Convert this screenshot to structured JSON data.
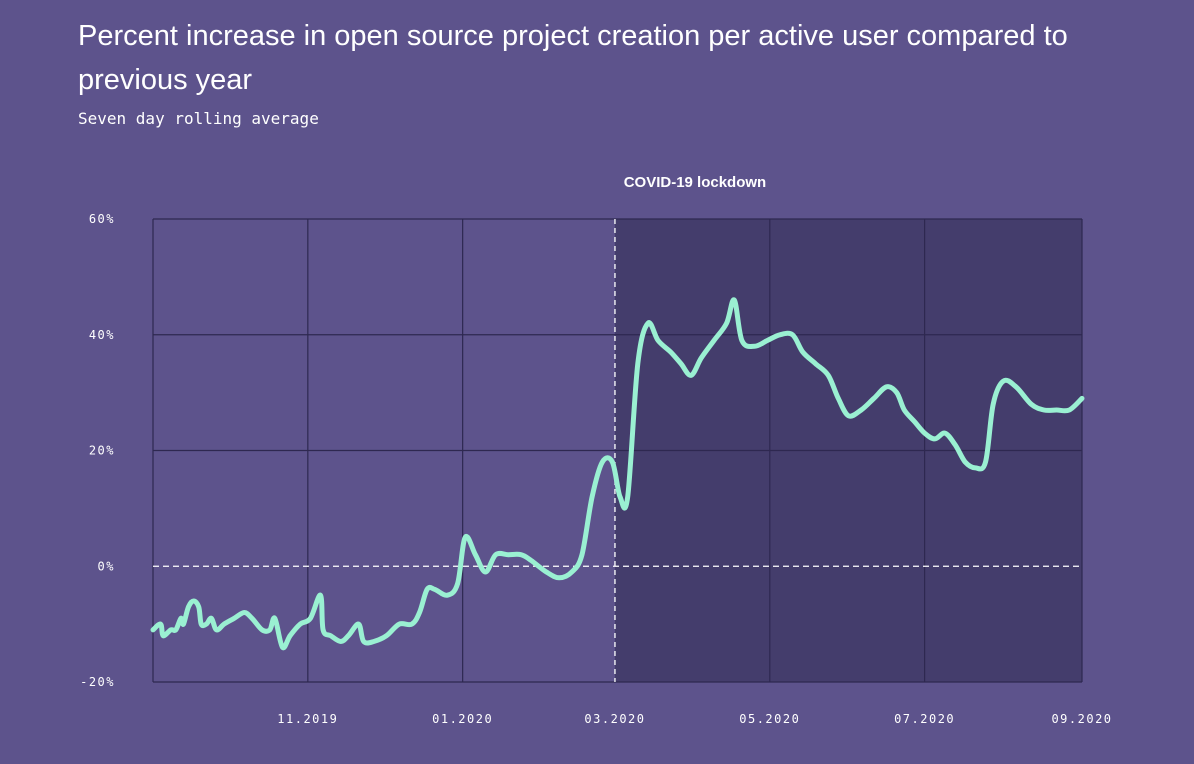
{
  "title": "Percent increase in open source project creation per active user compared to previous year",
  "subtitle": "Seven day rolling average",
  "colors": {
    "background": "#5d538c",
    "shaded_region": "#443d6c",
    "line": "#9af0d2",
    "grid": "#2e2850"
  },
  "chart_data": {
    "type": "line",
    "title": "Percent increase in open source project creation per active user compared to previous year",
    "subtitle": "Seven day rolling average",
    "xlabel": "",
    "ylabel": "",
    "x_range": [
      "2019-09-01",
      "2020-09-01"
    ],
    "ylim": [
      -20,
      60
    ],
    "y_ticks": [
      60,
      40,
      20,
      0,
      -20
    ],
    "y_tick_labels": [
      "60%",
      "40%",
      "20%",
      "0%",
      "-20%"
    ],
    "x_ticks": [
      "2019-11-01",
      "2020-01-01",
      "2020-03-01",
      "2020-05-01",
      "2020-07-01",
      "2020-09-01"
    ],
    "x_tick_labels": [
      "11.2019",
      "01.2020",
      "03.2020",
      "05.2020",
      "07.2020",
      "09.2020"
    ],
    "grid": true,
    "zero_line": "dashed",
    "annotation": {
      "label": "COVID-19 lockdown",
      "date": "2020-03-01",
      "shaded_until": "2020-09-01"
    },
    "series": [
      {
        "points": [
          [
            "2019-09-01",
            -11
          ],
          [
            "2019-09-04",
            -10
          ],
          [
            "2019-09-05",
            -12
          ],
          [
            "2019-09-08",
            -11
          ],
          [
            "2019-09-10",
            -11
          ],
          [
            "2019-09-12",
            -9
          ],
          [
            "2019-09-13",
            -10
          ],
          [
            "2019-09-15",
            -7
          ],
          [
            "2019-09-17",
            -6
          ],
          [
            "2019-09-19",
            -7
          ],
          [
            "2019-09-20",
            -10
          ],
          [
            "2019-09-22",
            -10
          ],
          [
            "2019-09-24",
            -9
          ],
          [
            "2019-09-26",
            -11
          ],
          [
            "2019-09-29",
            -10
          ],
          [
            "2019-10-03",
            -9
          ],
          [
            "2019-10-07",
            -8
          ],
          [
            "2019-10-10",
            -9
          ],
          [
            "2019-10-14",
            -11
          ],
          [
            "2019-10-17",
            -11
          ],
          [
            "2019-10-19",
            -9
          ],
          [
            "2019-10-22",
            -14
          ],
          [
            "2019-10-25",
            -12
          ],
          [
            "2019-10-29",
            -10
          ],
          [
            "2019-11-02",
            -9
          ],
          [
            "2019-11-06",
            -5
          ],
          [
            "2019-11-07",
            -11
          ],
          [
            "2019-11-10",
            -12
          ],
          [
            "2019-11-14",
            -13
          ],
          [
            "2019-11-17",
            -12
          ],
          [
            "2019-11-21",
            -10
          ],
          [
            "2019-11-23",
            -13
          ],
          [
            "2019-11-27",
            -13
          ],
          [
            "2019-12-02",
            -12
          ],
          [
            "2019-12-07",
            -10
          ],
          [
            "2019-12-12",
            -10
          ],
          [
            "2019-12-15",
            -8
          ],
          [
            "2019-12-18",
            -4
          ],
          [
            "2019-12-21",
            -4
          ],
          [
            "2019-12-26",
            -5
          ],
          [
            "2019-12-30",
            -3
          ],
          [
            "2020-01-02",
            5
          ],
          [
            "2020-01-06",
            2
          ],
          [
            "2020-01-10",
            -1
          ],
          [
            "2020-01-14",
            2
          ],
          [
            "2020-01-19",
            2
          ],
          [
            "2020-01-24",
            2
          ],
          [
            "2020-01-28",
            1
          ],
          [
            "2020-02-03",
            -1
          ],
          [
            "2020-02-08",
            -2
          ],
          [
            "2020-02-13",
            -1
          ],
          [
            "2020-02-17",
            2
          ],
          [
            "2020-02-21",
            12
          ],
          [
            "2020-02-25",
            18
          ],
          [
            "2020-02-29",
            18
          ],
          [
            "2020-03-03",
            12
          ],
          [
            "2020-03-06",
            12
          ],
          [
            "2020-03-10",
            35
          ],
          [
            "2020-03-14",
            42
          ],
          [
            "2020-03-18",
            39
          ],
          [
            "2020-03-23",
            37
          ],
          [
            "2020-03-27",
            35
          ],
          [
            "2020-03-31",
            33
          ],
          [
            "2020-04-04",
            36
          ],
          [
            "2020-04-09",
            39
          ],
          [
            "2020-04-14",
            42
          ],
          [
            "2020-04-17",
            46
          ],
          [
            "2020-04-20",
            39
          ],
          [
            "2020-04-25",
            38
          ],
          [
            "2020-04-30",
            39
          ],
          [
            "2020-05-05",
            40
          ],
          [
            "2020-05-10",
            40
          ],
          [
            "2020-05-14",
            37
          ],
          [
            "2020-05-19",
            35
          ],
          [
            "2020-05-24",
            33
          ],
          [
            "2020-05-28",
            29
          ],
          [
            "2020-06-01",
            26
          ],
          [
            "2020-06-06",
            27
          ],
          [
            "2020-06-11",
            29
          ],
          [
            "2020-06-16",
            31
          ],
          [
            "2020-06-20",
            30
          ],
          [
            "2020-06-23",
            27
          ],
          [
            "2020-06-27",
            25
          ],
          [
            "2020-07-01",
            23
          ],
          [
            "2020-07-05",
            22
          ],
          [
            "2020-07-09",
            23
          ],
          [
            "2020-07-13",
            21
          ],
          [
            "2020-07-17",
            18
          ],
          [
            "2020-07-21",
            17
          ],
          [
            "2020-07-25",
            18
          ],
          [
            "2020-07-28",
            28
          ],
          [
            "2020-08-01",
            32
          ],
          [
            "2020-08-06",
            31
          ],
          [
            "2020-08-12",
            28
          ],
          [
            "2020-08-17",
            27
          ],
          [
            "2020-08-22",
            27
          ],
          [
            "2020-08-27",
            27
          ],
          [
            "2020-09-01",
            29
          ]
        ]
      }
    ]
  }
}
